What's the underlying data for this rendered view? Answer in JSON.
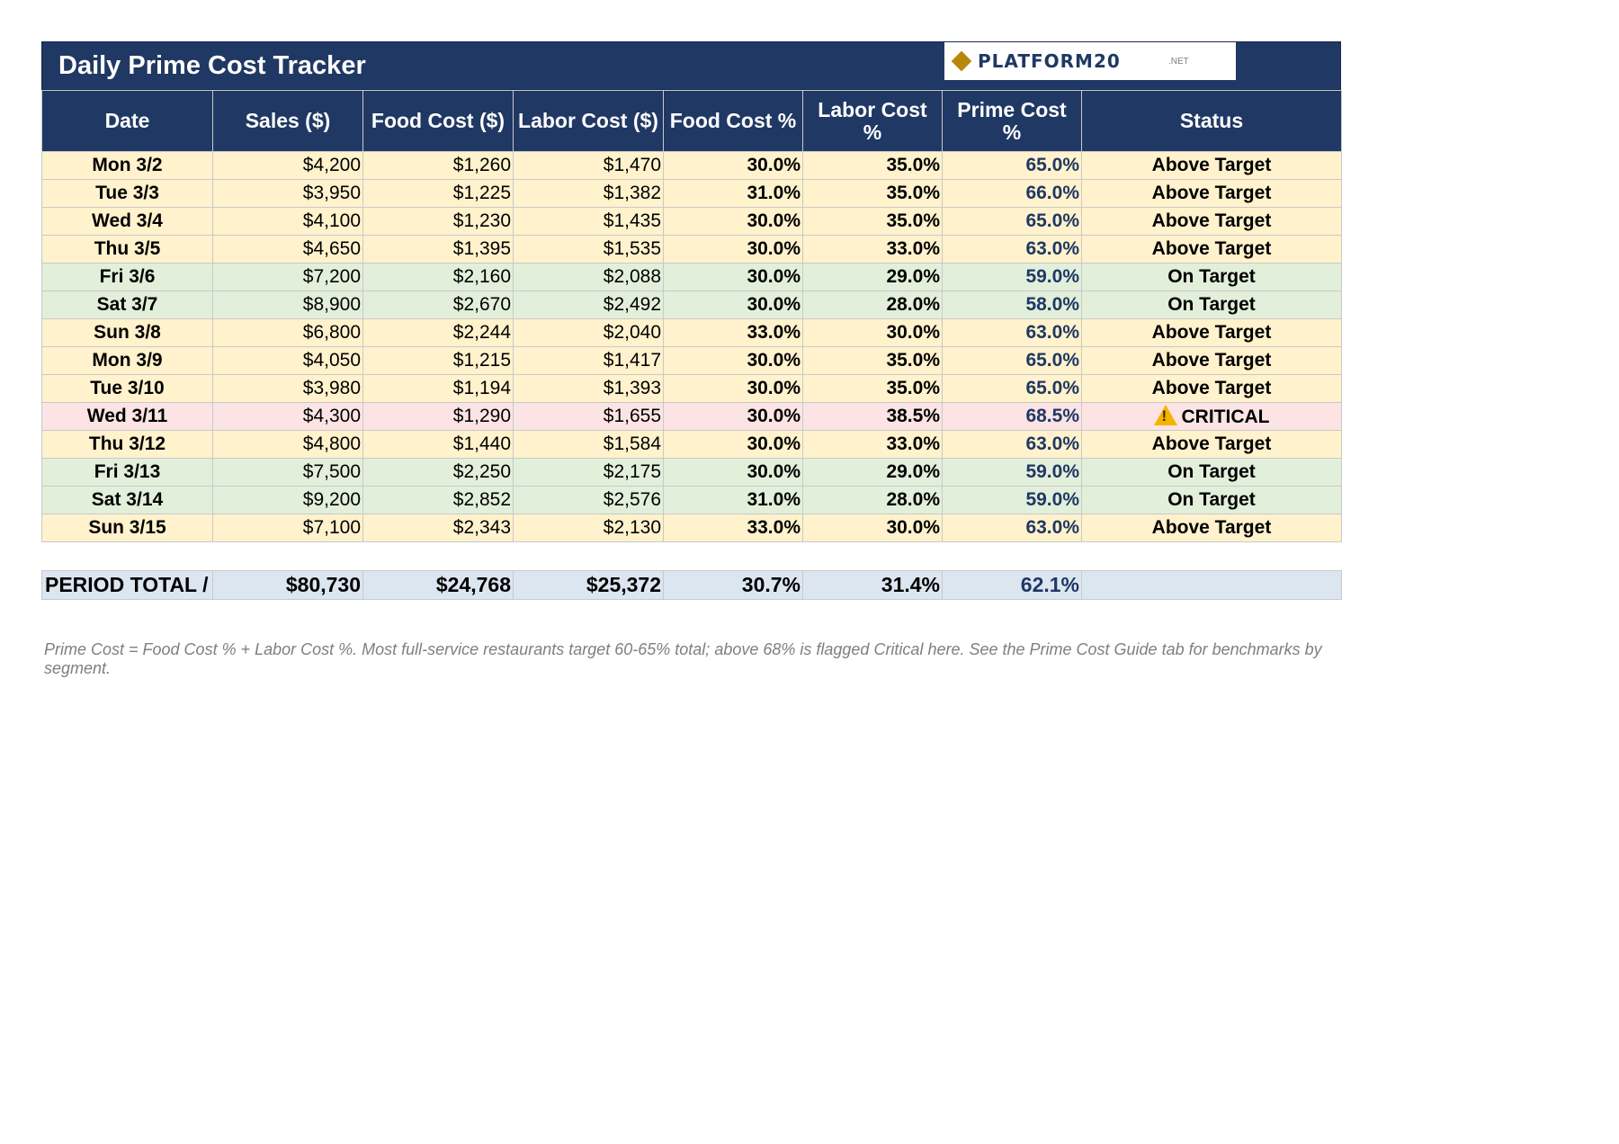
{
  "title": "Daily Prime Cost Tracker",
  "logo": {
    "name": "PLATFORM20",
    "tld": ".NET",
    "icon": "diamond-icon"
  },
  "columns": [
    "Date",
    "Sales ($)",
    "Food Cost ($)",
    "Labor Cost ($)",
    "Food Cost %",
    "Labor Cost %",
    "Prime Cost %",
    "Status"
  ],
  "rows": [
    {
      "date": "Mon 3/2",
      "sales": "$4,200",
      "food": "$1,260",
      "labor": "$1,470",
      "food_pct": "30.0%",
      "labor_pct": "35.0%",
      "prime_pct": "65.0%",
      "status": "Above Target"
    },
    {
      "date": "Tue 3/3",
      "sales": "$3,950",
      "food": "$1,225",
      "labor": "$1,382",
      "food_pct": "31.0%",
      "labor_pct": "35.0%",
      "prime_pct": "66.0%",
      "status": "Above Target"
    },
    {
      "date": "Wed 3/4",
      "sales": "$4,100",
      "food": "$1,230",
      "labor": "$1,435",
      "food_pct": "30.0%",
      "labor_pct": "35.0%",
      "prime_pct": "65.0%",
      "status": "Above Target"
    },
    {
      "date": "Thu 3/5",
      "sales": "$4,650",
      "food": "$1,395",
      "labor": "$1,535",
      "food_pct": "30.0%",
      "labor_pct": "33.0%",
      "prime_pct": "63.0%",
      "status": "Above Target"
    },
    {
      "date": "Fri 3/6",
      "sales": "$7,200",
      "food": "$2,160",
      "labor": "$2,088",
      "food_pct": "30.0%",
      "labor_pct": "29.0%",
      "prime_pct": "59.0%",
      "status": "On Target"
    },
    {
      "date": "Sat 3/7",
      "sales": "$8,900",
      "food": "$2,670",
      "labor": "$2,492",
      "food_pct": "30.0%",
      "labor_pct": "28.0%",
      "prime_pct": "58.0%",
      "status": "On Target"
    },
    {
      "date": "Sun 3/8",
      "sales": "$6,800",
      "food": "$2,244",
      "labor": "$2,040",
      "food_pct": "33.0%",
      "labor_pct": "30.0%",
      "prime_pct": "63.0%",
      "status": "Above Target"
    },
    {
      "date": "Mon 3/9",
      "sales": "$4,050",
      "food": "$1,215",
      "labor": "$1,417",
      "food_pct": "30.0%",
      "labor_pct": "35.0%",
      "prime_pct": "65.0%",
      "status": "Above Target"
    },
    {
      "date": "Tue 3/10",
      "sales": "$3,980",
      "food": "$1,194",
      "labor": "$1,393",
      "food_pct": "30.0%",
      "labor_pct": "35.0%",
      "prime_pct": "65.0%",
      "status": "Above Target"
    },
    {
      "date": "Wed 3/11",
      "sales": "$4,300",
      "food": "$1,290",
      "labor": "$1,655",
      "food_pct": "30.0%",
      "labor_pct": "38.5%",
      "prime_pct": "68.5%",
      "status": "CRITICAL",
      "status_icon": "warning-icon"
    },
    {
      "date": "Thu 3/12",
      "sales": "$4,800",
      "food": "$1,440",
      "labor": "$1,584",
      "food_pct": "30.0%",
      "labor_pct": "33.0%",
      "prime_pct": "63.0%",
      "status": "Above Target"
    },
    {
      "date": "Fri 3/13",
      "sales": "$7,500",
      "food": "$2,250",
      "labor": "$2,175",
      "food_pct": "30.0%",
      "labor_pct": "29.0%",
      "prime_pct": "59.0%",
      "status": "On Target"
    },
    {
      "date": "Sat 3/14",
      "sales": "$9,200",
      "food": "$2,852",
      "labor": "$2,576",
      "food_pct": "31.0%",
      "labor_pct": "28.0%",
      "prime_pct": "59.0%",
      "status": "On Target"
    },
    {
      "date": "Sun 3/15",
      "sales": "$7,100",
      "food": "$2,343",
      "labor": "$2,130",
      "food_pct": "33.0%",
      "labor_pct": "30.0%",
      "prime_pct": "63.0%",
      "status": "Above Target"
    }
  ],
  "total": {
    "label": "PERIOD TOTAL /",
    "sales": "$80,730",
    "food": "$24,768",
    "labor": "$25,372",
    "food_pct": "30.7%",
    "labor_pct": "31.4%",
    "prime_pct": "62.1%",
    "status": ""
  },
  "footnote": "Prime Cost = Food Cost % + Labor Cost %. Most full-service restaurants target 60-65% total; above 68% is flagged Critical here. See the Prime Cost Guide tab for benchmarks by segment.",
  "colors": {
    "header_bg": "#203864",
    "above_target_bg": "#fff2cc",
    "on_target_bg": "#e2efda",
    "critical_bg": "#fce4e4",
    "total_bg": "#dce6f1",
    "prime_text": "#1f3864",
    "logo_gold": "#b8860b"
  }
}
